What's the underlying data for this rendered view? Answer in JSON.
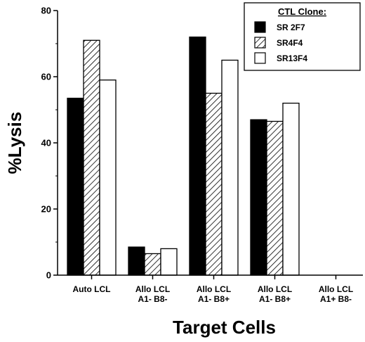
{
  "chart_data": {
    "type": "bar",
    "xlabel": "Target Cells",
    "ylabel": "%Lysis",
    "ylim": [
      0,
      80
    ],
    "yticks": [
      0,
      20,
      40,
      60,
      80
    ],
    "categories": [
      [
        "Auto LCL"
      ],
      [
        "Allo LCL",
        "A1- B8-"
      ],
      [
        "Allo LCL",
        "A1- B8+"
      ],
      [
        "Allo LCL",
        "A1- B8+"
      ],
      [
        "Allo LCL",
        "A1+ B8-"
      ]
    ],
    "legend_title": "CTL Clone:",
    "legend_position": "top-right",
    "series": [
      {
        "name": "SR 2F7",
        "fill": "solid-black",
        "values": [
          53.5,
          8.5,
          72,
          47,
          0
        ]
      },
      {
        "name": "SR4F4",
        "fill": "hatched",
        "values": [
          71,
          6.5,
          55,
          46.5,
          0
        ]
      },
      {
        "name": "SR13F4",
        "fill": "white",
        "values": [
          59,
          8,
          65,
          52,
          0
        ]
      }
    ],
    "grid": false
  }
}
